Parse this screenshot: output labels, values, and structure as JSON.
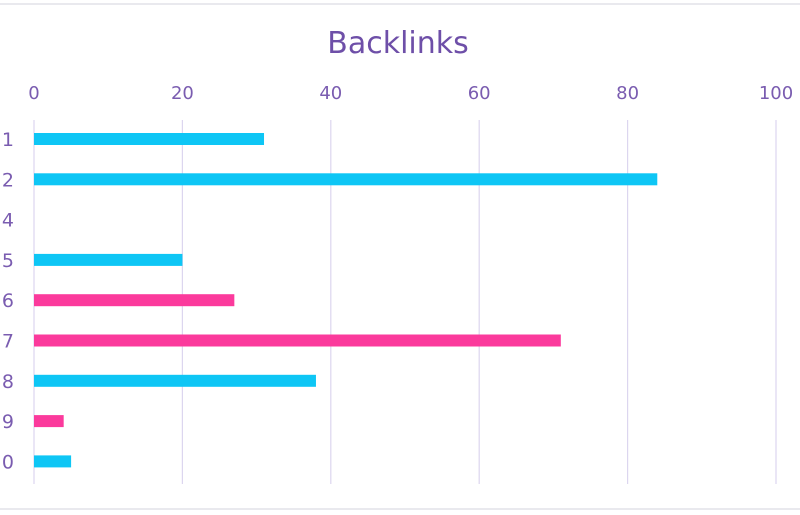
{
  "chart_data": {
    "type": "bar",
    "orientation": "horizontal",
    "title": "Backlinks",
    "xlabel": "",
    "ylabel": "",
    "xlim": [
      0,
      100
    ],
    "x_ticks": [
      0,
      20,
      40,
      60,
      80,
      100
    ],
    "x_axis_position": "top",
    "grid": true,
    "legend": "none",
    "categories": [
      "1",
      "2",
      "4",
      "5",
      "6",
      "7",
      "8",
      "9",
      "0"
    ],
    "values": [
      31,
      84,
      0,
      20,
      27,
      71,
      38,
      4,
      5
    ],
    "bar_colors": [
      "#0ec6f5",
      "#0ec6f5",
      "#0ec6f5",
      "#0ec6f5",
      "#fb3a9c",
      "#fb3a9c",
      "#0ec6f5",
      "#fb3a9c",
      "#0ec6f5"
    ]
  },
  "colors": {
    "title": "#6e4fa8",
    "labels": "#7a5cb0",
    "grid": "#dcd6ef",
    "cyan": "#0ec6f5",
    "pink": "#fb3a9c"
  }
}
